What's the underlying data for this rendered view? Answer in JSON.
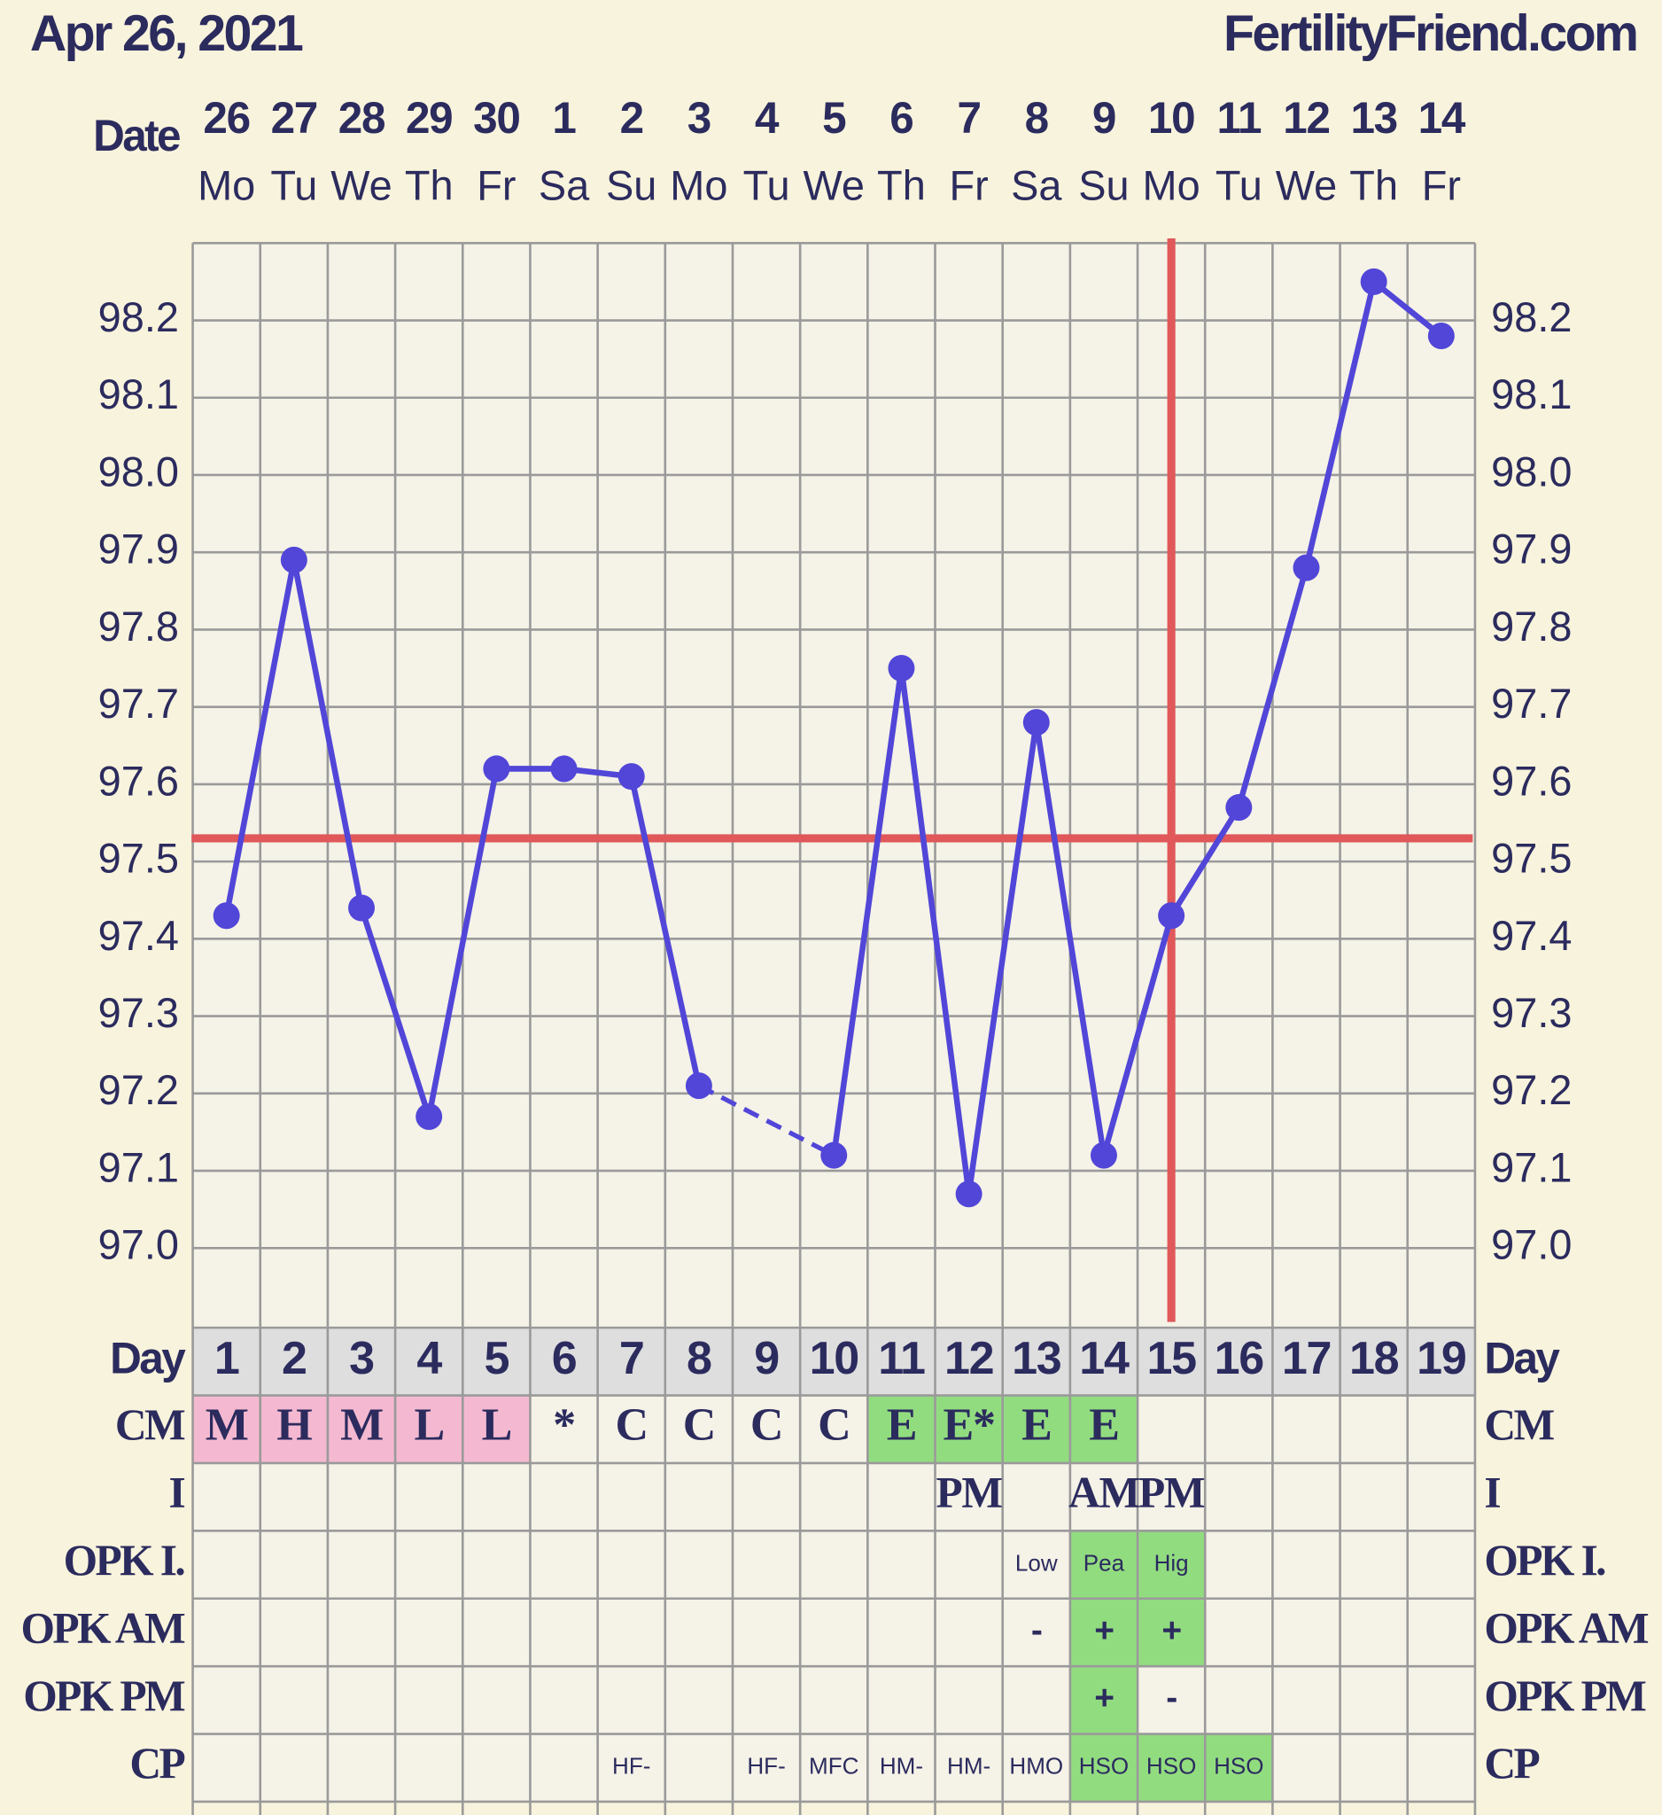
{
  "header": {
    "date": "Apr 26, 2021",
    "site": "FertilityFriend.com"
  },
  "chart_data": {
    "type": "line",
    "x_label": "Date",
    "categories": [
      "26",
      "27",
      "28",
      "29",
      "30",
      "1",
      "2",
      "3",
      "4",
      "5",
      "6",
      "7",
      "8",
      "9",
      "10",
      "11",
      "12",
      "13",
      "14"
    ],
    "weekdays": [
      "Mo",
      "Tu",
      "We",
      "Th",
      "Fr",
      "Sa",
      "Su",
      "Mo",
      "Tu",
      "We",
      "Th",
      "Fr",
      "Sa",
      "Su",
      "Mo",
      "Tu",
      "We",
      "Th",
      "Fr"
    ],
    "series": [
      {
        "color": "#5146d8",
        "values": [
          97.43,
          97.89,
          97.44,
          97.17,
          97.62,
          97.62,
          97.61,
          97.21,
          null,
          97.12,
          97.75,
          97.07,
          97.68,
          97.12,
          97.43,
          97.57,
          97.88,
          98.25,
          98.18
        ]
      }
    ],
    "ylim": [
      96.9,
      98.3
    ],
    "yticks": [
      {
        "value": 97.0,
        "label": "97.0"
      },
      97.1,
      97.2,
      97.3,
      97.4,
      97.5,
      97.6,
      97.7,
      97.8,
      97.9,
      {
        "value": 98.0,
        "label": "98.0"
      },
      98.1,
      98.2
    ],
    "grid": true,
    "coverline": 97.53,
    "coverline_color": "#e0585a",
    "ovulation_day": "15",
    "ovulation_color": "#e0585a"
  },
  "table": {
    "rows": [
      {
        "label": "Day",
        "fill": "#dedede",
        "cells": [
          "1",
          "2",
          "3",
          "4",
          "5",
          "6",
          "7",
          "8",
          "9",
          "10",
          "11",
          "12",
          "13",
          "14",
          "15",
          "16",
          "17",
          "18",
          "19"
        ]
      },
      {
        "label": "CM",
        "cells": [
          "M",
          "H",
          "M",
          "L",
          "L",
          "*",
          "C",
          "C",
          "C",
          "C",
          "E",
          "E*",
          "E",
          "E",
          null,
          null,
          null,
          null,
          null
        ],
        "fills": [
          "#f4b9d0",
          "#f4b9d0",
          "#f4b9d0",
          "#f4b9d0",
          "#f4b9d0",
          null,
          null,
          null,
          null,
          null,
          "#92dc80",
          "#92dc80",
          "#92dc80",
          "#92dc80",
          null,
          null,
          null,
          null,
          null
        ]
      },
      {
        "label": "I",
        "cells": [
          null,
          null,
          null,
          null,
          null,
          null,
          null,
          null,
          null,
          null,
          null,
          "PM",
          null,
          "AM",
          "PM",
          null,
          null,
          null,
          null
        ]
      },
      {
        "label": "OPK I.",
        "cells": [
          null,
          null,
          null,
          null,
          null,
          null,
          null,
          null,
          null,
          null,
          null,
          null,
          "Low",
          "Pea",
          "Hig",
          null,
          null,
          null,
          null
        ],
        "fills": [
          null,
          null,
          null,
          null,
          null,
          null,
          null,
          null,
          null,
          null,
          null,
          null,
          null,
          "#92dc80",
          "#92dc80",
          null,
          null,
          null,
          null
        ]
      },
      {
        "label": "OPK AM",
        "cells": [
          null,
          null,
          null,
          null,
          null,
          null,
          null,
          null,
          null,
          null,
          null,
          null,
          "-",
          "+",
          "+",
          null,
          null,
          null,
          null
        ],
        "fills": [
          null,
          null,
          null,
          null,
          null,
          null,
          null,
          null,
          null,
          null,
          null,
          null,
          null,
          "#92dc80",
          "#92dc80",
          null,
          null,
          null,
          null
        ]
      },
      {
        "label": "OPK PM",
        "cells": [
          null,
          null,
          null,
          null,
          null,
          null,
          null,
          null,
          null,
          null,
          null,
          null,
          null,
          "+",
          "-",
          null,
          null,
          null,
          null
        ],
        "fills": [
          null,
          null,
          null,
          null,
          null,
          null,
          null,
          null,
          null,
          null,
          null,
          null,
          null,
          "#92dc80",
          null,
          null,
          null,
          null,
          null
        ]
      },
      {
        "label": "CP",
        "cells": [
          null,
          null,
          null,
          null,
          null,
          null,
          "HF-",
          null,
          "HF-",
          "MFC",
          "HM-",
          "HM-",
          "HMO",
          "HSO",
          "HSO",
          "HSO",
          null,
          null,
          null
        ],
        "fills": [
          null,
          null,
          null,
          null,
          null,
          null,
          null,
          null,
          null,
          null,
          null,
          null,
          null,
          "#92dc80",
          "#92dc80",
          "#92dc80",
          null,
          null,
          null
        ]
      }
    ]
  }
}
